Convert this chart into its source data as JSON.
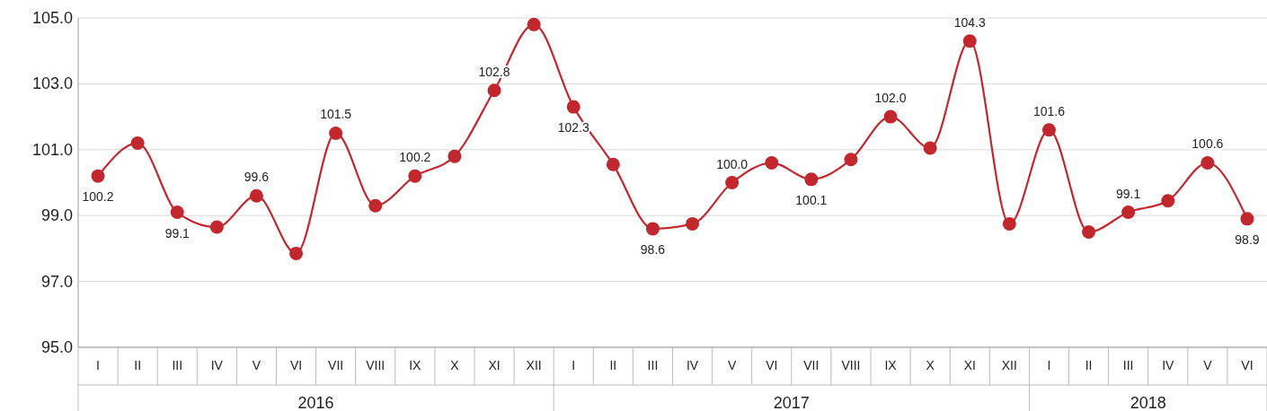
{
  "chart_data": {
    "type": "line",
    "categories": [
      "I",
      "II",
      "III",
      "IV",
      "V",
      "VI",
      "VII",
      "VIII",
      "IX",
      "X",
      "XI",
      "XII",
      "I",
      "II",
      "III",
      "IV",
      "V",
      "VI",
      "VII",
      "VIII",
      "IX",
      "X",
      "XI",
      "XII",
      "I",
      "II",
      "III",
      "IV",
      "V",
      "VI"
    ],
    "series": [
      {
        "color": "#c1272d",
        "values": [
          100.2,
          101.2,
          99.1,
          98.65,
          99.6,
          97.85,
          101.5,
          99.3,
          100.2,
          100.8,
          102.8,
          104.8,
          102.3,
          100.55,
          98.6,
          98.75,
          100.0,
          100.6,
          100.1,
          100.7,
          102.0,
          101.05,
          104.3,
          98.75,
          101.6,
          98.5,
          99.1,
          99.45,
          100.6,
          98.9
        ],
        "value_labels": [
          "100.2",
          null,
          "99.1",
          null,
          "99.6",
          null,
          "101.5",
          null,
          "100.2",
          null,
          "102.8",
          null,
          "102.3",
          null,
          "98.6",
          null,
          "100.0",
          null,
          "100.1",
          null,
          "102.0",
          null,
          "104.3",
          null,
          "101.6",
          null,
          "99.1",
          null,
          "100.6",
          "98.9"
        ]
      }
    ],
    "ylim": [
      95,
      105
    ],
    "yticks": [
      {
        "value": 95,
        "label": "95.0"
      },
      {
        "value": 97,
        "label": "97.0"
      },
      {
        "value": 99,
        "label": "99.0"
      },
      {
        "value": 101,
        "label": "101.0"
      },
      {
        "value": 103,
        "label": "103.0"
      },
      {
        "value": 105,
        "label": "105.0"
      }
    ],
    "grid": "y",
    "marker": "circle",
    "annotations": [
      "2016",
      "2017",
      "2018"
    ]
  }
}
